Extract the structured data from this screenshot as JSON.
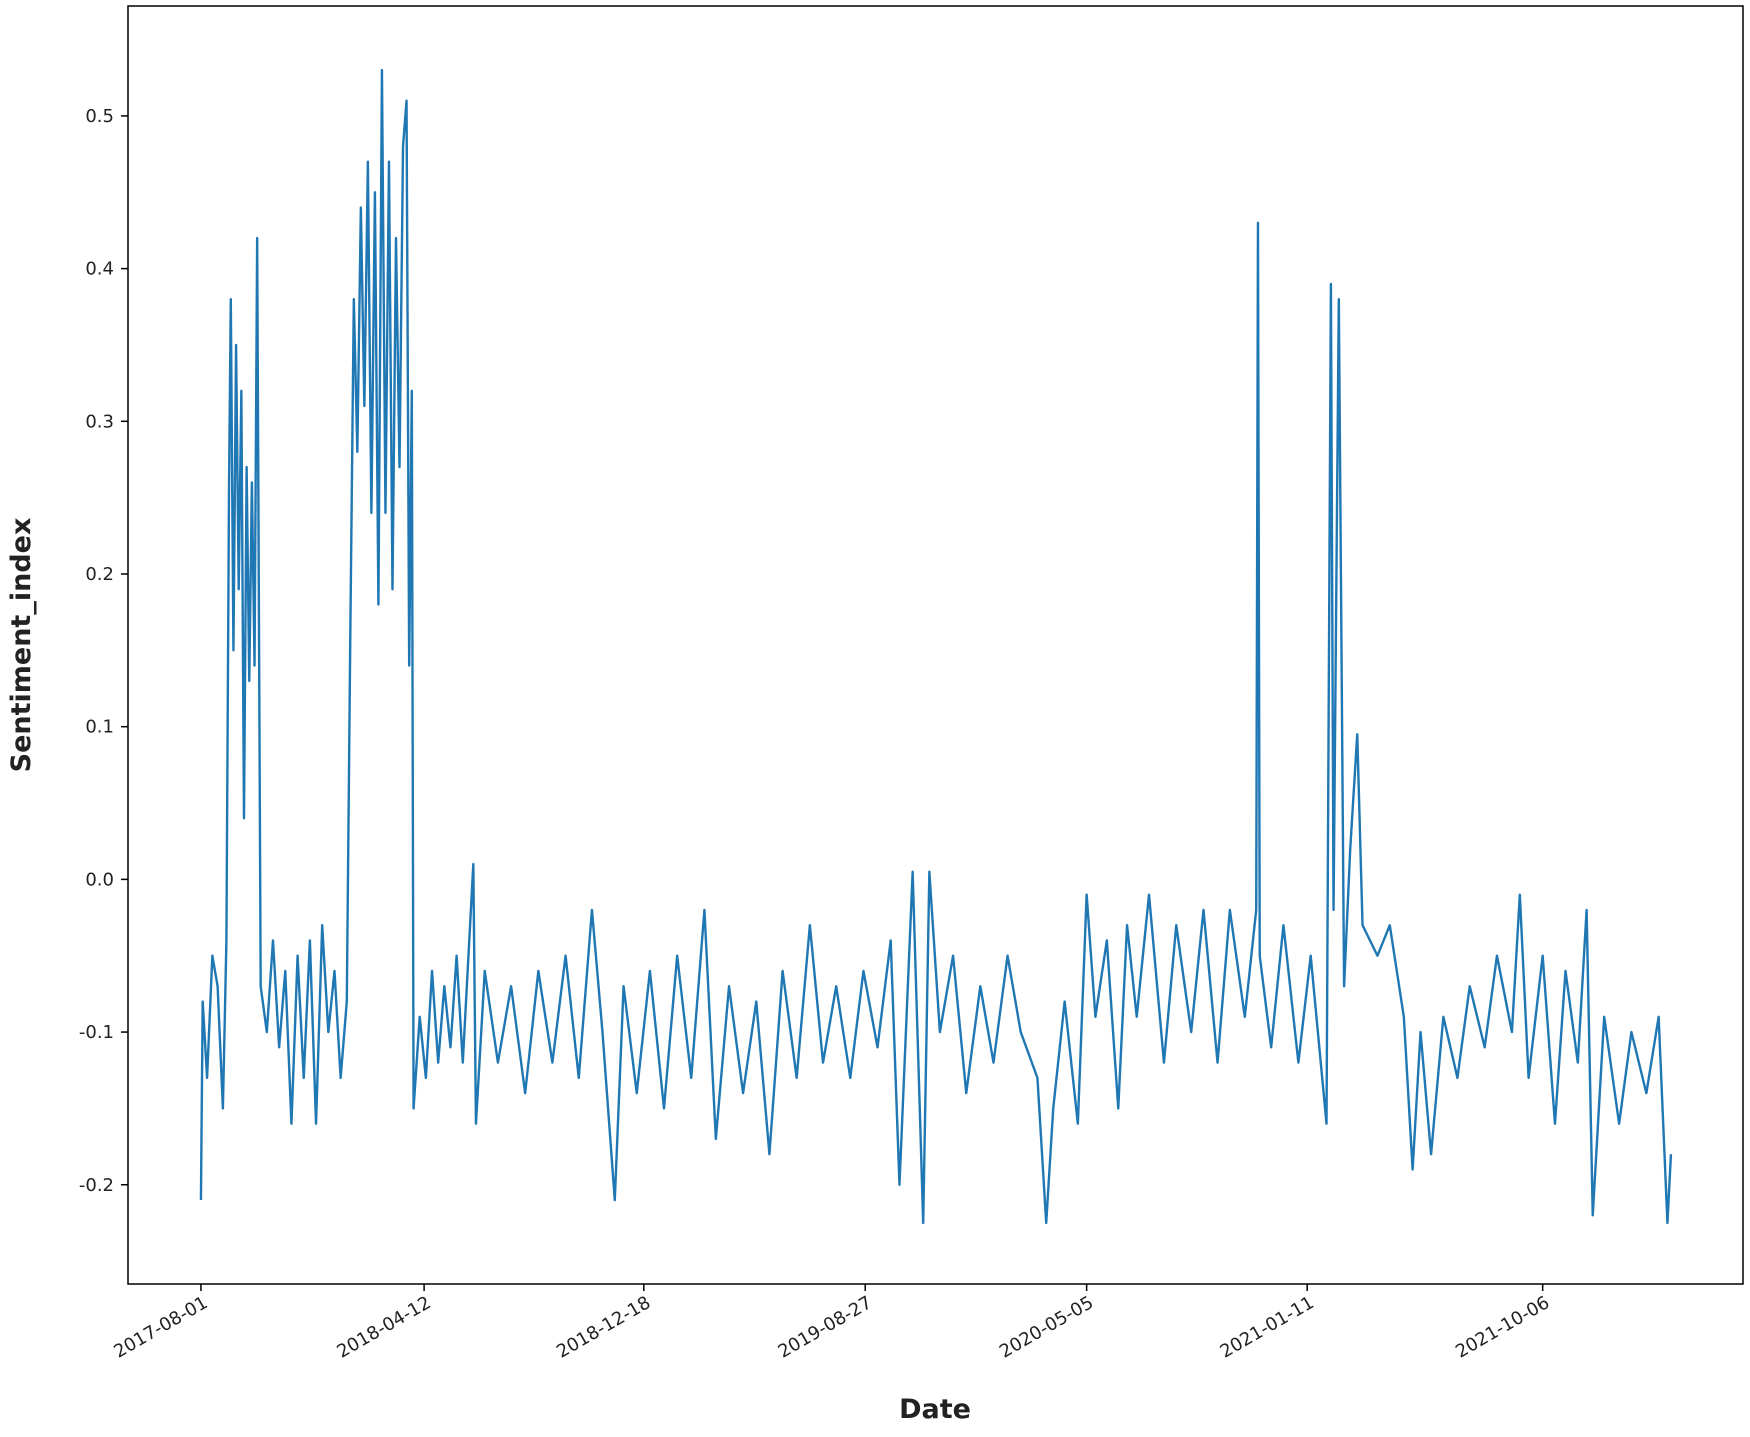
{
  "chart_data": {
    "type": "line",
    "x_label": "Date",
    "y_label": "Sentiment_index",
    "color": "#1f77b4",
    "grid": false,
    "xlim": [
      "2017-05-10",
      "2022-05-22"
    ],
    "xticks": [
      "2017-08-01",
      "2018-04-12",
      "2018-12-18",
      "2019-08-27",
      "2020-05-05",
      "2021-01-11",
      "2021-10-06"
    ],
    "ylim": [
      -0.265,
      0.572
    ],
    "yticks": [
      -0.2,
      -0.1,
      {
        "value": 0,
        "label": "0.0"
      },
      0.1,
      0.2,
      0.3,
      0.4,
      0.5
    ],
    "x": [
      "2017-08-01",
      "2017-08-03",
      "2017-08-08",
      "2017-08-14",
      "2017-08-20",
      "2017-08-26",
      "2017-08-30",
      "2017-09-02",
      "2017-09-04",
      "2017-09-07",
      "2017-09-10",
      "2017-09-13",
      "2017-09-16",
      "2017-09-19",
      "2017-09-22",
      "2017-09-25",
      "2017-09-28",
      "2017-10-01",
      "2017-10-04",
      "2017-10-08",
      "2017-10-15",
      "2017-10-22",
      "2017-10-29",
      "2017-11-05",
      "2017-11-12",
      "2017-11-19",
      "2017-11-26",
      "2017-12-03",
      "2017-12-10",
      "2017-12-17",
      "2017-12-24",
      "2017-12-31",
      "2018-01-07",
      "2018-01-14",
      "2018-01-18",
      "2018-01-22",
      "2018-01-26",
      "2018-01-30",
      "2018-02-03",
      "2018-02-07",
      "2018-02-11",
      "2018-02-15",
      "2018-02-19",
      "2018-02-23",
      "2018-02-27",
      "2018-03-03",
      "2018-03-07",
      "2018-03-11",
      "2018-03-15",
      "2018-03-19",
      "2018-03-23",
      "2018-03-26",
      "2018-03-29",
      "2018-03-31",
      "2018-04-07",
      "2018-04-14",
      "2018-04-21",
      "2018-04-28",
      "2018-05-05",
      "2018-05-12",
      "2018-05-19",
      "2018-05-26",
      "2018-06-07",
      "2018-06-10",
      "2018-06-20",
      "2018-07-05",
      "2018-07-20",
      "2018-08-05",
      "2018-08-20",
      "2018-09-05",
      "2018-09-20",
      "2018-10-05",
      "2018-10-20",
      "2018-11-01",
      "2018-11-15",
      "2018-11-25",
      "2018-12-10",
      "2018-12-25",
      "2019-01-10",
      "2019-01-25",
      "2019-02-10",
      "2019-02-25",
      "2019-03-10",
      "2019-03-25",
      "2019-04-10",
      "2019-04-25",
      "2019-05-10",
      "2019-05-25",
      "2019-06-10",
      "2019-06-25",
      "2019-07-10",
      "2019-07-25",
      "2019-08-10",
      "2019-08-25",
      "2019-09-10",
      "2019-09-25",
      "2019-10-05",
      "2019-10-20",
      "2019-11-01",
      "2019-11-08",
      "2019-11-20",
      "2019-12-05",
      "2019-12-20",
      "2020-01-05",
      "2020-01-20",
      "2020-02-05",
      "2020-02-20",
      "2020-03-10",
      "2020-03-20",
      "2020-03-28",
      "2020-04-10",
      "2020-04-25",
      "2020-05-05",
      "2020-05-15",
      "2020-05-28",
      "2020-06-10",
      "2020-06-20",
      "2020-07-01",
      "2020-07-15",
      "2020-08-01",
      "2020-08-15",
      "2020-09-01",
      "2020-09-15",
      "2020-10-01",
      "2020-10-15",
      "2020-11-01",
      "2020-11-14",
      "2020-11-16",
      "2020-11-18",
      "2020-12-01",
      "2020-12-15",
      "2021-01-01",
      "2021-01-15",
      "2021-02-02",
      "2021-02-07",
      "2021-02-10",
      "2021-02-16",
      "2021-02-22",
      "2021-03-01",
      "2021-03-09",
      "2021-03-15",
      "2021-04-01",
      "2021-04-15",
      "2021-05-01",
      "2021-05-11",
      "2021-05-20",
      "2021-06-01",
      "2021-06-15",
      "2021-07-01",
      "2021-07-15",
      "2021-08-01",
      "2021-08-15",
      "2021-09-01",
      "2021-09-10",
      "2021-09-20",
      "2021-10-06",
      "2021-10-20",
      "2021-11-01",
      "2021-11-15",
      "2021-11-25",
      "2021-12-02",
      "2021-12-15",
      "2022-01-01",
      "2022-01-15",
      "2022-02-01",
      "2022-02-15",
      "2022-02-25",
      "2022-03-01"
    ],
    "values": [
      -0.21,
      -0.08,
      -0.13,
      -0.05,
      -0.07,
      -0.15,
      -0.04,
      0.26,
      0.38,
      0.15,
      0.35,
      0.19,
      0.32,
      0.04,
      0.27,
      0.13,
      0.26,
      0.14,
      0.42,
      -0.07,
      -0.1,
      -0.04,
      -0.11,
      -0.06,
      -0.16,
      -0.05,
      -0.13,
      -0.04,
      -0.16,
      -0.03,
      -0.1,
      -0.06,
      -0.13,
      -0.08,
      0.16,
      0.38,
      0.28,
      0.44,
      0.31,
      0.47,
      0.24,
      0.45,
      0.18,
      0.53,
      0.24,
      0.47,
      0.19,
      0.42,
      0.27,
      0.48,
      0.51,
      0.14,
      0.32,
      -0.15,
      -0.09,
      -0.13,
      -0.06,
      -0.12,
      -0.07,
      -0.11,
      -0.05,
      -0.12,
      0.01,
      -0.16,
      -0.06,
      -0.12,
      -0.07,
      -0.14,
      -0.06,
      -0.12,
      -0.05,
      -0.13,
      -0.02,
      -0.1,
      -0.21,
      -0.07,
      -0.14,
      -0.06,
      -0.15,
      -0.05,
      -0.13,
      -0.02,
      -0.17,
      -0.07,
      -0.14,
      -0.08,
      -0.18,
      -0.06,
      -0.13,
      -0.03,
      -0.12,
      -0.07,
      -0.13,
      -0.06,
      -0.11,
      -0.04,
      -0.2,
      0.005,
      -0.225,
      0.005,
      -0.1,
      -0.05,
      -0.14,
      -0.07,
      -0.12,
      -0.05,
      -0.1,
      -0.13,
      -0.225,
      -0.15,
      -0.08,
      -0.16,
      -0.01,
      -0.09,
      -0.04,
      -0.15,
      -0.03,
      -0.09,
      -0.01,
      -0.12,
      -0.03,
      -0.1,
      -0.02,
      -0.12,
      -0.02,
      -0.09,
      -0.02,
      0.43,
      -0.05,
      -0.11,
      -0.03,
      -0.12,
      -0.05,
      -0.16,
      0.39,
      -0.02,
      0.38,
      -0.07,
      0.02,
      0.095,
      -0.03,
      -0.05,
      -0.03,
      -0.09,
      -0.19,
      -0.1,
      -0.18,
      -0.09,
      -0.13,
      -0.07,
      -0.11,
      -0.05,
      -0.1,
      -0.01,
      -0.13,
      -0.05,
      -0.16,
      -0.06,
      -0.12,
      -0.02,
      -0.22,
      -0.09,
      -0.16,
      -0.1,
      -0.14,
      -0.09,
      -0.225,
      -0.18
    ]
  }
}
